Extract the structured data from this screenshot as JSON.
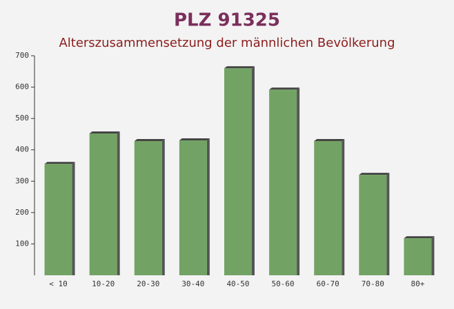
{
  "chart_data": {
    "type": "bar",
    "title": "PLZ 91325",
    "subtitle": "Alterszusammensetzung der männlichen Bevölkerung",
    "categories": [
      "< 10",
      "10-20",
      "20-30",
      "30-40",
      "40-50",
      "50-60",
      "60-70",
      "70-80",
      "80+"
    ],
    "values": [
      355,
      452,
      428,
      430,
      660,
      592,
      428,
      320,
      118
    ],
    "color": "#6a9e5c",
    "ylim": [
      0,
      700
    ],
    "yticks": [
      100,
      200,
      300,
      400,
      500,
      600,
      700
    ]
  }
}
